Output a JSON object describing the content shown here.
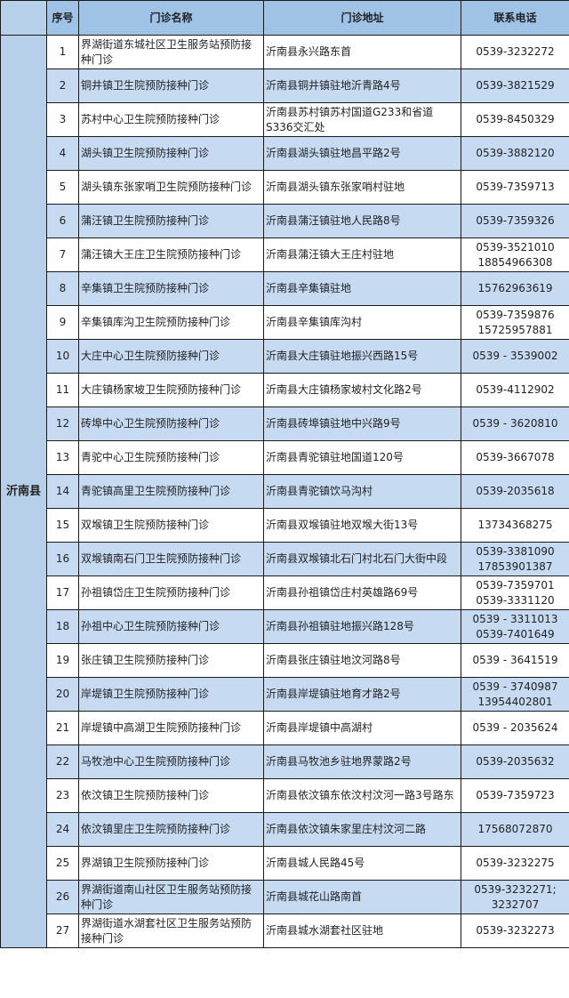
{
  "headers": {
    "seq": "序号",
    "name": "门诊名称",
    "address": "门诊地址",
    "phone": "联系电话"
  },
  "county": "沂南县",
  "rows": [
    {
      "seq": "1",
      "name": "界湖街道东城社区卫生服务站预防接种门诊",
      "address": "沂南县永兴路东首",
      "phone": "0539-3232272"
    },
    {
      "seq": "2",
      "name": "铜井镇卫生院预防接种门诊",
      "address": "沂南县铜井镇驻地沂青路4号",
      "phone": "0539-3821529"
    },
    {
      "seq": "3",
      "name": "苏村中心卫生院预防接种门诊",
      "address": "沂南县苏村镇苏村国道G233和省道S336交汇处",
      "phone": "0539-8450329"
    },
    {
      "seq": "4",
      "name": "湖头镇卫生院预防接种门诊",
      "address": "沂南县湖头镇驻地昌平路2号",
      "phone": "0539-3882120"
    },
    {
      "seq": "5",
      "name": "湖头镇东张家哨卫生院预防接种门诊",
      "address": "沂南县湖头镇东张家哨村驻地",
      "phone": "0539-7359713"
    },
    {
      "seq": "6",
      "name": "蒲汪镇卫生院预防接种门诊",
      "address": "沂南县蒲汪镇驻地人民路8号",
      "phone": "0539-7359326"
    },
    {
      "seq": "7",
      "name": "蒲汪镇大王庄卫生院预防接种门诊",
      "address": "沂南县蒲汪镇大王庄村驻地",
      "phone": "0539-3521010\n18854966308"
    },
    {
      "seq": "8",
      "name": "辛集镇卫生院预防接种门诊",
      "address": "沂南县辛集镇驻地",
      "phone": "15762963619"
    },
    {
      "seq": "9",
      "name": "辛集镇库沟卫生院预防接种门诊",
      "address": "沂南县辛集镇库沟村",
      "phone": "0539-7359876\n15725957881"
    },
    {
      "seq": "10",
      "name": "大庄中心卫生院预防接种门诊",
      "address": "沂南县大庄镇驻地振兴西路15号",
      "phone": "0539 - 3539002"
    },
    {
      "seq": "11",
      "name": "大庄镇杨家坡卫生院预防接种门诊",
      "address": "沂南县大庄镇杨家坡村文化路2号",
      "phone": "0539-4112902"
    },
    {
      "seq": "12",
      "name": "砖埠中心卫生院预防接种门诊",
      "address": "沂南县砖埠镇驻地中兴路9号",
      "phone": "0539 - 3620810"
    },
    {
      "seq": "13",
      "name": "青驼中心卫生院预防接种门诊",
      "address": "沂南县青驼镇驻地国道120号",
      "phone": "0539-3667078"
    },
    {
      "seq": "14",
      "name": "青驼镇高里卫生院预防接种门诊",
      "address": "沂南县青驼镇饮马沟村",
      "phone": "0539-2035618"
    },
    {
      "seq": "15",
      "name": "双堠镇卫生院预防接种门诊",
      "address": "沂南县双堠镇驻地双堠大街13号",
      "phone": "13734368275"
    },
    {
      "seq": "16",
      "name": "双堠镇南石门卫生院预防接种门诊",
      "address": "沂南县双堠镇北石门村北石门大街中段",
      "phone": "0539-3381090\n17853901387"
    },
    {
      "seq": "17",
      "name": "孙祖镇岱庄卫生院预防接种门诊",
      "address": "沂南县孙祖镇岱庄村英雄路69号",
      "phone": "0539-7359701\n0539-3331120"
    },
    {
      "seq": "18",
      "name": "孙祖中心卫生院预防接种门诊",
      "address": "沂南县孙祖镇驻地振兴路128号",
      "phone": "0539 - 3311013\n0539-7401649"
    },
    {
      "seq": "19",
      "name": "张庄镇卫生院预防接种门诊",
      "address": "沂南县张庄镇驻地汶河路8号",
      "phone": "0539 - 3641519"
    },
    {
      "seq": "20",
      "name": "岸堤镇卫生院预防接种门诊",
      "address": "沂南县岸堤镇驻地育才路2号",
      "phone": "0539 - 3740987\n13954402801"
    },
    {
      "seq": "21",
      "name": "岸堤镇中高湖卫生院预防接种门诊",
      "address": "沂南县岸堤镇中高湖村",
      "phone": "0539 - 2035624"
    },
    {
      "seq": "22",
      "name": "马牧池中心卫生院预防接种门诊",
      "address": "沂南县马牧池乡驻地界蒙路2号",
      "phone": "0539-2035632"
    },
    {
      "seq": "23",
      "name": "依汶镇卫生院预防接种门诊",
      "address": "沂南县依汶镇东依汶村汶河一路3号路东",
      "phone": "0539-7359723"
    },
    {
      "seq": "24",
      "name": "依汶镇里庄卫生院预防接种门诊",
      "address": "沂南县依汶镇朱家里庄村汶河二路",
      "phone": "17568072870"
    },
    {
      "seq": "25",
      "name": "界湖镇卫生院预防接种门诊",
      "address": "沂南县城人民路45号",
      "phone": "0539-3232275"
    },
    {
      "seq": "26",
      "name": "界湖街道南山社区卫生服务站预防接种门诊",
      "address": "沂南县城花山路南首",
      "phone": "0539-3232271;\n3232707"
    },
    {
      "seq": "27",
      "name": "界湖街道水湖套社区卫生服务站预防接种门诊",
      "address": "沂南县城水湖套社区驻地",
      "phone": "0539-3232273"
    }
  ],
  "colors": {
    "header": "#9ec3e6",
    "row_alt": "#c6daf1",
    "border": "#1a1a1a"
  }
}
